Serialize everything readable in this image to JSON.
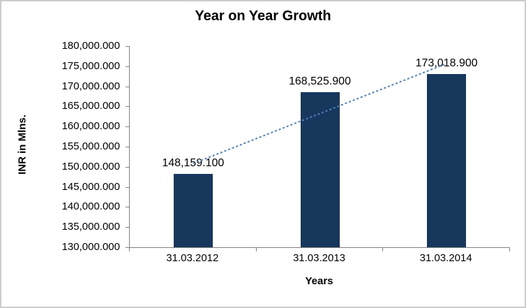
{
  "chart_data": {
    "type": "bar",
    "title": "Year on Year Growth",
    "xlabel": "Years",
    "ylabel": "INR in Mlns.",
    "categories": [
      "31.03.2012",
      "31.03.2013",
      "31.03.2014"
    ],
    "values": [
      148159.1,
      168525.9,
      173018.9
    ],
    "data_labels": [
      "148,159.100",
      "168,525.900",
      "173,018.900"
    ],
    "ylim": [
      130000,
      180000
    ],
    "ytick_step": 5000,
    "ytick_labels": [
      "180,000.000",
      "175,000.000",
      "170,000.000",
      "165,000.000",
      "160,000.000",
      "155,000.000",
      "150,000.000",
      "145,000.000",
      "140,000.000",
      "135,000.000",
      "130,000.000"
    ],
    "grid": false,
    "legend": false,
    "bar_color": "#17375D",
    "axis_color": "#808080",
    "text_color": "#000000",
    "trendline": {
      "type": "linear",
      "style": "dotted",
      "color": "#4F81BD",
      "start_value": 150804.7,
      "end_value": 175664.6
    }
  }
}
